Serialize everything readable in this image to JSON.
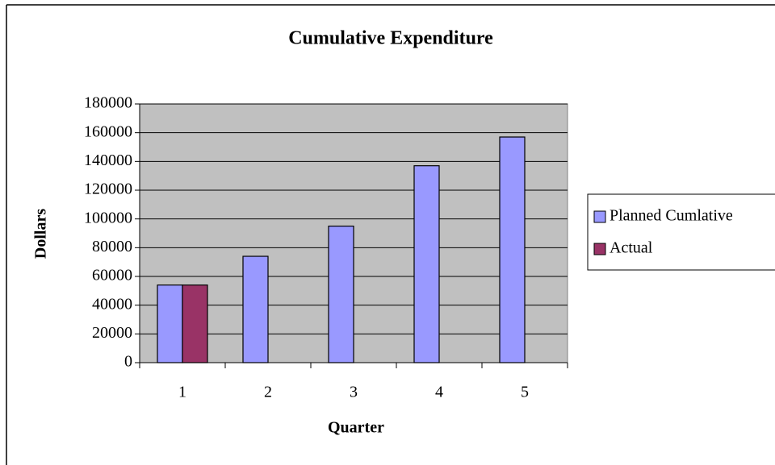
{
  "chart_data": {
    "type": "bar",
    "title": "Cumulative Expenditure",
    "x_label": "Quarter",
    "y_label": "Dollars",
    "categories": [
      "1",
      "2",
      "3",
      "4",
      "5"
    ],
    "series": [
      {
        "name": "Planned Cumlative",
        "color": "#9999ff",
        "values": [
          54000,
          74000,
          95000,
          137000,
          157000
        ]
      },
      {
        "name": "Actual",
        "color": "#993366",
        "values": [
          54000,
          null,
          null,
          null,
          null
        ]
      }
    ],
    "ylim": [
      0,
      180000
    ],
    "yticks": [
      0,
      20000,
      40000,
      60000,
      80000,
      100000,
      120000,
      140000,
      160000,
      180000
    ],
    "grid": true,
    "legend": "right"
  }
}
